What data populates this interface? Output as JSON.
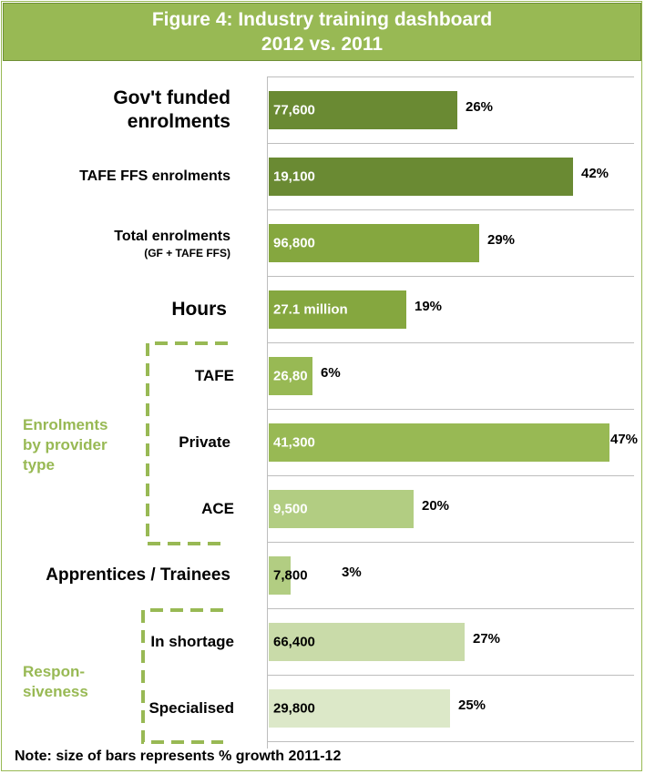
{
  "title_line1": "Figure 4: Industry training dashboard",
  "title_line2": "2012 vs. 2011",
  "note": "Note: size of bars represents % growth 2011-12",
  "colors": {
    "header_bg": "#98b954",
    "dark_green": "#6a8a33",
    "mid_green": "#85a73f",
    "light_green": "#b2cd82",
    "pale_green": "#c9dba9",
    "label_green": "#98b954"
  },
  "groups": {
    "enrolments_by_provider": "Enrolments by provider type",
    "responsiveness": "Respon- siveness"
  },
  "chart_data": {
    "type": "bar",
    "orientation": "horizontal",
    "title": "Figure 4: Industry training dashboard 2012 vs. 2011",
    "note": "Note: size of bars represents % growth 2011-12",
    "categories": [
      "Gov't funded enrolments",
      "TAFE FFS enrolments",
      "Total enrolments (GF + TAFE FFS)",
      "Hours",
      "TAFE",
      "Private",
      "ACE",
      "Apprentices / Trainees",
      "In shortage",
      "Specialised"
    ],
    "rows": [
      {
        "label": "Gov't funded enrolments",
        "sublabel": "",
        "value": "77,600",
        "growth": 26,
        "growth_label": "26%",
        "color": "#6a8a33",
        "text_color": "#ffffff"
      },
      {
        "label": "TAFE FFS enrolments",
        "sublabel": "",
        "value": "19,100",
        "growth": 42,
        "growth_label": "42%",
        "color": "#6a8a33",
        "text_color": "#ffffff"
      },
      {
        "label": "Total enrolments",
        "sublabel": "(GF + TAFE FFS)",
        "value": "96,800",
        "growth": 29,
        "growth_label": "29%",
        "color": "#85a73f",
        "text_color": "#ffffff"
      },
      {
        "label": "Hours",
        "sublabel": "",
        "value": "27.1 million",
        "growth": 19,
        "growth_label": "19%",
        "color": "#85a73f",
        "text_color": "#ffffff"
      },
      {
        "label": "TAFE",
        "sublabel": "",
        "value": "26,80",
        "growth": 6,
        "growth_label": "6%",
        "color": "#98b954",
        "text_color": "#ffffff"
      },
      {
        "label": "Private",
        "sublabel": "",
        "value": "41,300",
        "growth": 47,
        "growth_label": "47%",
        "color": "#98b954",
        "text_color": "#ffffff"
      },
      {
        "label": "ACE",
        "sublabel": "",
        "value": "9,500",
        "growth": 20,
        "growth_label": "20%",
        "color": "#b2cd82",
        "text_color": "#ffffff"
      },
      {
        "label": "Apprentices / Trainees",
        "sublabel": "",
        "value": "7,800",
        "growth": 3,
        "growth_label": "3%",
        "color": "#b2cd82",
        "text_color": "#000000"
      },
      {
        "label": "In shortage",
        "sublabel": "",
        "value": "66,400",
        "growth": 27,
        "growth_label": "27%",
        "color": "#c9dba9",
        "text_color": "#000000"
      },
      {
        "label": "Specialised",
        "sublabel": "",
        "value": "29,800",
        "growth": 25,
        "growth_label": "25%",
        "color": "#dce8c8",
        "text_color": "#000000"
      }
    ],
    "xlim": [
      0,
      47
    ],
    "grid": true,
    "legend": "none"
  }
}
